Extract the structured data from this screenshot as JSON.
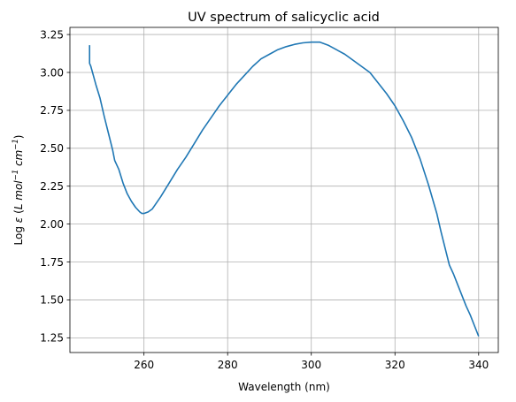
{
  "chart_data": {
    "type": "line",
    "title": "UV spectrum of salicyclic acid",
    "xlabel": "Wavelength (nm)",
    "ylabel": {
      "prefix": "Log ",
      "epsilon": "ε",
      "open": " (",
      "L": "L mol",
      "exp1": "−1",
      "cm": " cm",
      "exp2": "−1",
      "close": ")"
    },
    "xlim": [
      242.3,
      344.7
    ],
    "ylim": [
      1.153,
      3.297
    ],
    "xticks": [
      260,
      280,
      300,
      320,
      340
    ],
    "yticks": [
      1.25,
      1.5,
      1.75,
      2.0,
      2.25,
      2.5,
      2.75,
      3.0,
      3.25
    ],
    "xtick_labels": [
      "260",
      "280",
      "300",
      "320",
      "340"
    ],
    "ytick_labels": [
      "1.25",
      "1.50",
      "1.75",
      "2.00",
      "2.25",
      "2.50",
      "2.75",
      "3.00",
      "3.25"
    ],
    "grid": true,
    "color": "#1f77b4",
    "series": [
      {
        "x": [
          247.0,
          247.0,
          247.0,
          247.0,
          247.3,
          247.8,
          248.5,
          249.5,
          250.5,
          251.5,
          252.5,
          253.0,
          254.0,
          255.0,
          256.0,
          257.0,
          258.0,
          259.0,
          259.5,
          260.0,
          261.0,
          262.0,
          263.0,
          264.0,
          266.0,
          268.0,
          270.0,
          272.0,
          274.0,
          276.0,
          278.0,
          280.0,
          282.0,
          284.0,
          286.0,
          288.0,
          290.0,
          292.0,
          294.0,
          296.0,
          298.0,
          300.0,
          301.0,
          302.0,
          304.0,
          306.0,
          308.0,
          310.0,
          312.0,
          314.0,
          316.0,
          318.0,
          320.0,
          322.0,
          324.0,
          326.0,
          328.0,
          330.0,
          331.0,
          332.0,
          333.0,
          334.0,
          335.0,
          336.0,
          337.0,
          338.0,
          339.0,
          340.0
        ],
        "y": [
          3.18,
          3.15,
          3.1,
          3.06,
          3.04,
          2.99,
          2.92,
          2.83,
          2.71,
          2.6,
          2.49,
          2.42,
          2.36,
          2.27,
          2.2,
          2.15,
          2.11,
          2.08,
          2.07,
          2.07,
          2.08,
          2.1,
          2.14,
          2.18,
          2.27,
          2.36,
          2.44,
          2.53,
          2.62,
          2.7,
          2.78,
          2.85,
          2.92,
          2.98,
          3.04,
          3.09,
          3.12,
          3.15,
          3.17,
          3.185,
          3.195,
          3.2,
          3.2,
          3.2,
          3.18,
          3.15,
          3.12,
          3.08,
          3.04,
          3.0,
          2.93,
          2.86,
          2.78,
          2.68,
          2.57,
          2.43,
          2.26,
          2.07,
          1.95,
          1.84,
          1.73,
          1.67,
          1.6,
          1.53,
          1.46,
          1.4,
          1.33,
          1.26
        ]
      }
    ]
  }
}
